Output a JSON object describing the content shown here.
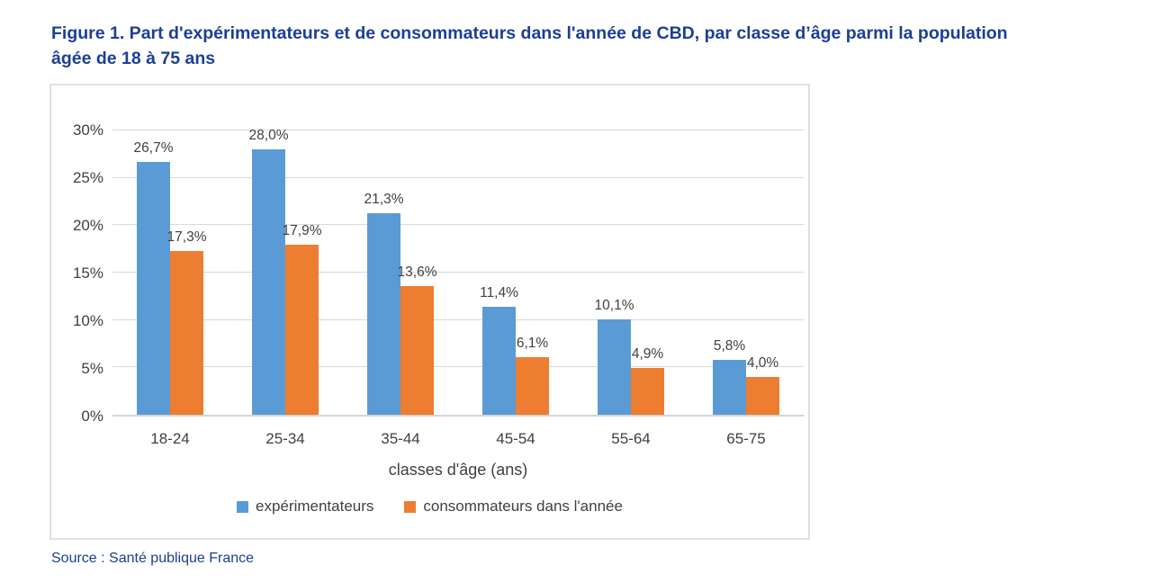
{
  "title": "Figure 1. Part d'expérimentateurs et de consommateurs dans l'année de CBD, par classe d’âge parmi la population âgée de 18 à 75 ans",
  "source": "Source : Santé publique France",
  "colors": {
    "series_blue": "#5B9BD5",
    "series_orange": "#ED7D31",
    "gridline": "#D9D9D9",
    "text_gray": "#404040",
    "title_blue": "#1B3F94"
  },
  "chart_data": {
    "type": "bar",
    "title": "",
    "xlabel": "classes d'âge (ans)",
    "ylabel": "",
    "ylim": [
      0,
      30
    ],
    "grid": true,
    "legend_position": "bottom",
    "yticks": [
      "0%",
      "5%",
      "10%",
      "15%",
      "20%",
      "25%",
      "30%"
    ],
    "categories": [
      "18-24",
      "25-34",
      "35-44",
      "45-54",
      "55-64",
      "65-75"
    ],
    "series": [
      {
        "name": "expérimentateurs",
        "color": "#5B9BD5",
        "values": [
          26.7,
          28.0,
          21.3,
          11.4,
          10.1,
          5.8
        ],
        "labels": [
          "26,7%",
          "28,0%",
          "21,3%",
          "11,4%",
          "10,1%",
          "5,8%"
        ]
      },
      {
        "name": "consommateurs dans l'année",
        "color": "#ED7D31",
        "values": [
          17.3,
          17.9,
          13.6,
          6.1,
          4.9,
          4.0
        ],
        "labels": [
          "17,3%",
          "17,9%",
          "13,6%",
          "6,1%",
          "4,9%",
          "4,0%"
        ]
      }
    ]
  }
}
